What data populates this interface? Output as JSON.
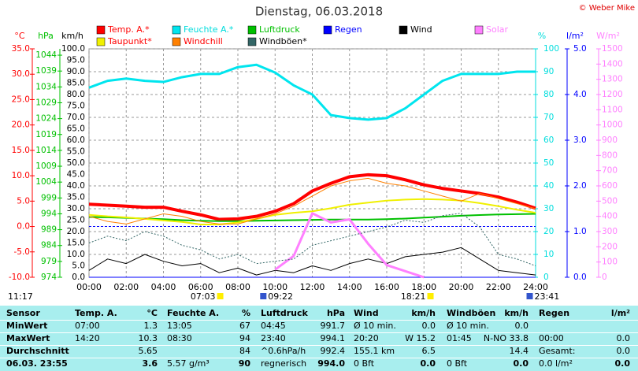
{
  "chart_data": {
    "type": "line",
    "title": "Dienstag, 06.03.2018",
    "credit": "© Weber Mike",
    "moon_time": "11:17",
    "x": [
      0,
      1,
      2,
      3,
      4,
      5,
      6,
      7,
      8,
      9,
      10,
      11,
      12,
      13,
      14,
      15,
      16,
      17,
      18,
      19,
      20,
      21,
      22,
      23,
      24
    ],
    "xlim": [
      0,
      24
    ],
    "xticks": [
      {
        "value": 0,
        "label": "00:00"
      },
      {
        "value": 2,
        "label": "02:00"
      },
      {
        "value": 4,
        "label": "04:00"
      },
      {
        "value": 6,
        "label": "06:00"
      },
      {
        "value": 8,
        "label": "08:00"
      },
      {
        "value": 10,
        "label": "10:00"
      },
      {
        "value": 12,
        "label": "12:00"
      },
      {
        "value": 14,
        "label": "14:00"
      },
      {
        "value": 16,
        "label": "16:00"
      },
      {
        "value": 18,
        "label": "18:00"
      },
      {
        "value": 20,
        "label": "20:00"
      },
      {
        "value": 22,
        "label": "22:00"
      },
      {
        "value": 24,
        "label": "24:00"
      }
    ],
    "grid": true,
    "axes": {
      "c": {
        "label": "°C",
        "color": "#ff0000",
        "lim": [
          -10,
          35
        ],
        "ticks": [
          {
            "value": -10,
            "label": "-10.0"
          },
          {
            "value": -5,
            "label": "-5.0"
          },
          {
            "value": 0,
            "label": "0.0"
          },
          {
            "value": 5,
            "label": "5.0"
          },
          {
            "value": 10,
            "label": "10.0"
          },
          {
            "value": 15,
            "label": "15.0"
          },
          {
            "value": 20,
            "label": "20.0"
          },
          {
            "value": 25,
            "label": "25.0"
          },
          {
            "value": 30,
            "label": "30.0"
          },
          {
            "value": 35,
            "label": "35.0"
          }
        ]
      },
      "hpa": {
        "label": "hPa",
        "color": "#00c000",
        "lim": [
          974,
          1046
        ],
        "ticks": [
          974,
          979,
          984,
          989,
          994,
          999,
          1004,
          1009,
          1014,
          1019,
          1024,
          1029,
          1034,
          1039,
          1044
        ]
      },
      "kmh": {
        "label": "km/h",
        "color": "#000000",
        "lim": [
          0,
          100
        ],
        "ticks": [
          {
            "value": 0,
            "label": "0.0"
          },
          {
            "value": 5,
            "label": "5.0"
          },
          {
            "value": 10,
            "label": "10.0"
          },
          {
            "value": 15,
            "label": "15.0"
          },
          {
            "value": 20,
            "label": "20.0"
          },
          {
            "value": 25,
            "label": "25.0"
          },
          {
            "value": 30,
            "label": "30.0"
          },
          {
            "value": 35,
            "label": "35.0"
          },
          {
            "value": 40,
            "label": "40.0"
          },
          {
            "value": 45,
            "label": "45.0"
          },
          {
            "value": 50,
            "label": "50.0"
          },
          {
            "value": 55,
            "label": "55.0"
          },
          {
            "value": 60,
            "label": "60.0"
          },
          {
            "value": 65,
            "label": "65.0"
          },
          {
            "value": 70,
            "label": "70.0"
          },
          {
            "value": 75,
            "label": "75.0"
          },
          {
            "value": 80,
            "label": "80.0"
          },
          {
            "value": 85,
            "label": "85.0"
          },
          {
            "value": 90,
            "label": "90.0"
          },
          {
            "value": 95,
            "label": "95.0"
          },
          {
            "value": 100,
            "label": "100.0"
          }
        ]
      },
      "pct": {
        "label": "%",
        "color": "#00dddd",
        "lim": [
          0,
          100
        ],
        "ticks": [
          0,
          10,
          20,
          30,
          40,
          50,
          60,
          70,
          80,
          90,
          100
        ]
      },
      "lm2": {
        "label": "l/m²",
        "color": "#0000ff",
        "lim": [
          0,
          5
        ],
        "ticks": [
          {
            "value": 0,
            "label": "0.0"
          },
          {
            "value": 1,
            "label": "1.0"
          },
          {
            "value": 2,
            "label": "2.0"
          },
          {
            "value": 3,
            "label": "3.0"
          },
          {
            "value": 4,
            "label": "4.0"
          },
          {
            "value": 5,
            "label": "5.0"
          }
        ]
      },
      "wm2": {
        "label": "W/m²",
        "color": "#ff80ff",
        "lim": [
          0,
          1500
        ],
        "ticks": [
          0,
          100,
          200,
          300,
          400,
          500,
          600,
          700,
          800,
          900,
          1000,
          1100,
          1200,
          1300,
          1400,
          1500
        ]
      }
    },
    "series": [
      {
        "name": "Temp. A.*",
        "color": "#ff0000",
        "text_color": "#ff0000",
        "axis": "c",
        "width": 4,
        "values": [
          4.4,
          4.2,
          4.0,
          3.8,
          3.8,
          3.0,
          2.3,
          1.4,
          1.5,
          2.0,
          3.0,
          4.5,
          7.0,
          8.5,
          9.8,
          10.2,
          10.0,
          9.2,
          8.2,
          7.5,
          7.0,
          6.5,
          5.8,
          4.8,
          3.6
        ]
      },
      {
        "name": "Feuchte A.*",
        "color": "#00e5ee",
        "text_color": "#00dddd",
        "axis": "pct",
        "width": 3,
        "values": [
          83,
          86,
          87,
          86,
          85.5,
          87.6,
          89,
          89,
          92,
          93,
          89.6,
          84,
          80,
          71,
          69.7,
          69,
          69.7,
          74,
          80,
          86,
          89,
          89,
          89,
          90,
          90
        ]
      },
      {
        "name": "Luftdruck",
        "color": "#00c000",
        "text_color": "#00c000",
        "axis": "hpa",
        "width": 2,
        "values": [
          993.0,
          992.9,
          992.7,
          992.5,
          992.3,
          992.0,
          991.8,
          991.7,
          991.7,
          991.8,
          991.9,
          992.0,
          992.1,
          992.2,
          992.2,
          992.2,
          992.3,
          992.5,
          992.8,
          993.1,
          993.4,
          993.6,
          993.8,
          993.9,
          994.0
        ]
      },
      {
        "name": "Regen",
        "color": "#0000ff",
        "text_color": "#0000ff",
        "axis": "lm2",
        "width": 1,
        "values": [
          0,
          0,
          0,
          0,
          0,
          0,
          0,
          0,
          0,
          0,
          0,
          0,
          0,
          0,
          0,
          0,
          0,
          0,
          0,
          0,
          0,
          0,
          0,
          0,
          0
        ]
      },
      {
        "name": "Wind",
        "color": "#000000",
        "text_color": "#000000",
        "axis": "kmh",
        "width": 1,
        "values": [
          3,
          8,
          6,
          10,
          7,
          5,
          6,
          2,
          4,
          1,
          3,
          2,
          5,
          3,
          6,
          8,
          6,
          9,
          10,
          11,
          13,
          8,
          3,
          2,
          1
        ]
      },
      {
        "name": "Solar",
        "color": "#ff80ff",
        "text_color": "#ff80ff",
        "axis": "wm2",
        "width": 3,
        "values": [
          null,
          null,
          null,
          null,
          null,
          null,
          null,
          null,
          null,
          null,
          50,
          140,
          420,
          360,
          380,
          220,
          80,
          40,
          0,
          null,
          null,
          null,
          null,
          null,
          null
        ]
      },
      {
        "name": "Taupunkt*",
        "color": "#f0f000",
        "text_color": "#ff0000",
        "axis": "c",
        "width": 2,
        "values": [
          2.3,
          2.0,
          1.8,
          1.5,
          1.2,
          0.9,
          0.4,
          0.4,
          0.8,
          1.5,
          2.3,
          2.7,
          3.0,
          3.6,
          4.3,
          4.7,
          5.1,
          5.3,
          5.4,
          5.3,
          5.1,
          4.6,
          4.0,
          3.3,
          2.7
        ]
      },
      {
        "name": "Windchill",
        "color": "#ff8000",
        "text_color": "#ff0000",
        "axis": "c",
        "width": 1,
        "values": [
          2.0,
          1.0,
          0.5,
          1.5,
          2.5,
          2.0,
          1.0,
          0.5,
          0.5,
          1.5,
          2.5,
          4.0,
          6.0,
          8.0,
          9.0,
          9.5,
          8.5,
          8.0,
          7.0,
          6.0,
          5.0,
          6.5,
          5.5,
          4.5,
          3.5
        ]
      },
      {
        "name": "Windböen*",
        "color": "#336666",
        "text_color": "#000000",
        "axis": "kmh",
        "width": 1,
        "dash": true,
        "values": [
          15,
          18,
          16,
          20,
          18,
          14,
          12,
          8,
          10,
          6,
          7,
          8,
          14,
          16,
          18,
          20,
          22,
          25,
          24,
          27,
          28,
          22,
          10,
          8,
          5
        ]
      }
    ],
    "sun_markers": [
      {
        "x": 7.05,
        "label": "07:03"
      },
      {
        "x": 9.367,
        "label": "09:22"
      },
      {
        "x": 18.35,
        "label": "18:21"
      },
      {
        "x": 23.683,
        "label": "23:41"
      }
    ]
  },
  "table": {
    "header": [
      "Sensor",
      "Temp. A.",
      "°C",
      "Feuchte A.",
      "%",
      "Luftdruck",
      "hPa",
      "Wind",
      "km/h",
      "Windböen",
      "km/h",
      "Regen",
      "l/m²"
    ],
    "rows": [
      [
        "MinWert",
        "07:00",
        "1.3",
        "13:05",
        "67",
        "04:45",
        "991.7",
        "Ø 10 min.",
        "0.0",
        "Ø 10 min.",
        "0.0",
        null,
        null
      ],
      [
        "MaxWert",
        "14:20",
        "10.3",
        "08:30",
        "94",
        "23:40",
        "994.1",
        "20:20",
        "W 15.2",
        "01:45",
        "N-NO 33.8",
        "00:00",
        "0.0"
      ],
      [
        "Durchschnitt",
        null,
        "5.65",
        null,
        "84",
        "^0.6hPa/h",
        "992.4",
        "155.1 km",
        "6.5",
        null,
        "14.4",
        "Gesamt:",
        "0.0"
      ],
      [
        "06.03. 23:55",
        null,
        "3.6",
        "5.57 g/m³",
        "90",
        "regnerisch",
        "994.0",
        "0 Bft",
        "0.0",
        "0 Bft",
        "0.0",
        "0.0 l/m²",
        "0.0"
      ]
    ]
  }
}
